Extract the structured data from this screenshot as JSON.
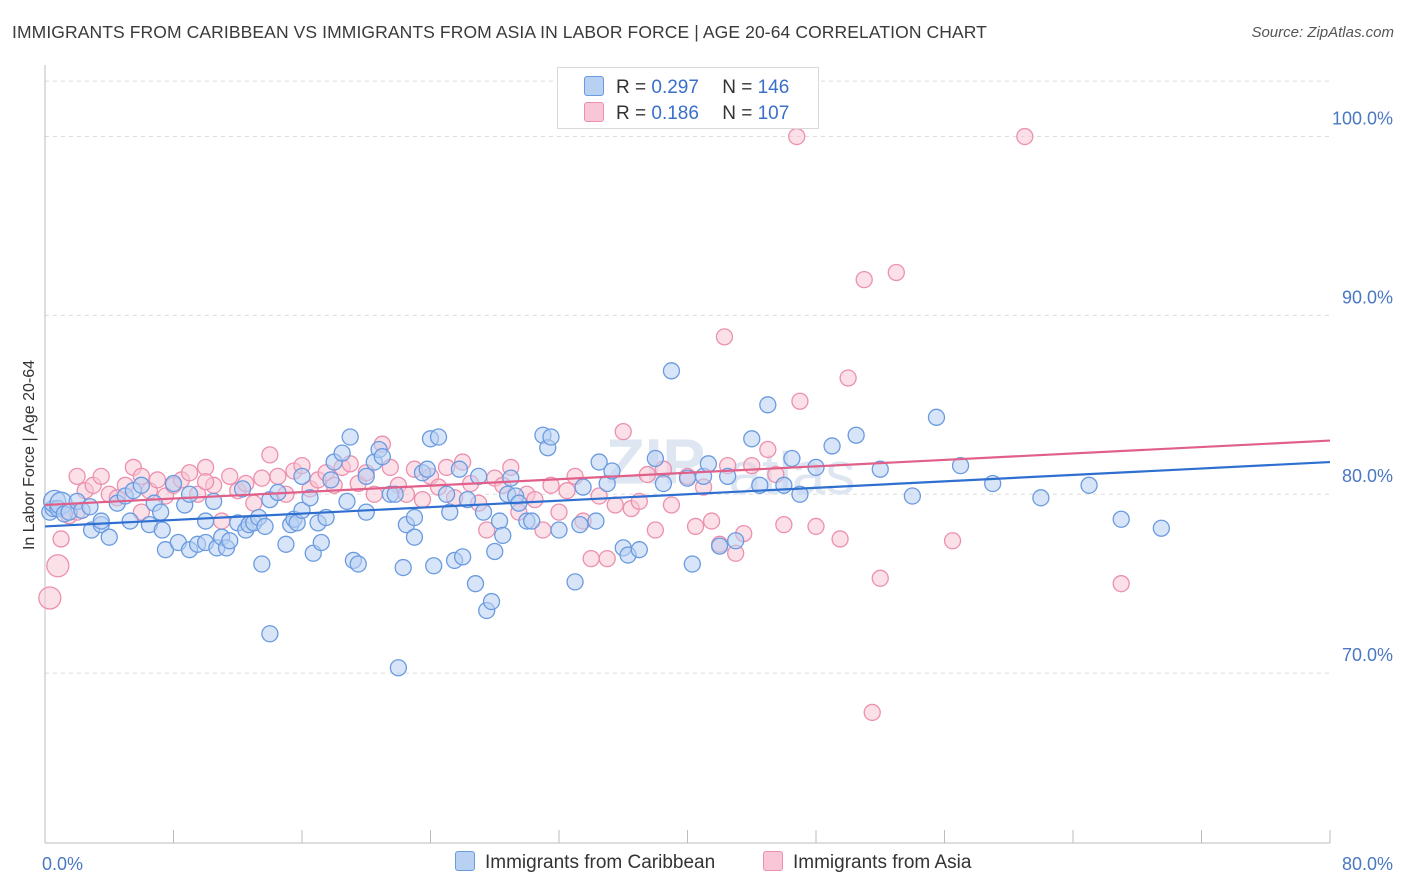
{
  "title": "IMMIGRANTS FROM CARIBBEAN VS IMMIGRANTS FROM ASIA IN LABOR FORCE | AGE 20-64 CORRELATION CHART",
  "source": "Source: ZipAtlas.com",
  "colors": {
    "blue_fill": "#b8d0f2",
    "blue_stroke": "#6a9be0",
    "blue_line": "#2f6fd0",
    "pink_fill": "#f8c6d6",
    "pink_stroke": "#ec90ae",
    "pink_line": "#e0608a",
    "tick_text": "#4a78c2",
    "grid": "#dcdcdc"
  },
  "legend": {
    "rows": [
      {
        "r_label": "R =",
        "r_value": "0.297",
        "n_label": "N =",
        "n_value": "146",
        "series": "blue"
      },
      {
        "r_label": "R =",
        "r_value": "0.186",
        "n_label": "N =",
        "n_value": "107",
        "series": "pink"
      }
    ]
  },
  "chart_data": {
    "type": "scatter",
    "xlabel": "",
    "ylabel": "In Labor Force | Age 20-64",
    "xlim": [
      0,
      80
    ],
    "ylim": [
      60.5,
      104
    ],
    "x_tick_labels": [
      "0.0%",
      "80.0%"
    ],
    "y_ticks": [
      70,
      80,
      90,
      100
    ],
    "y_tick_labels": [
      "70.0%",
      "80.0%",
      "90.0%",
      "100.0%"
    ],
    "grid": "horizontal dashed",
    "legend_position": "top-center",
    "series": [
      {
        "name": "Immigrants from Caribbean",
        "color": "blue",
        "trend": [
          [
            0,
            78.2
          ],
          [
            80,
            81.8
          ]
        ],
        "points": [
          [
            0.3,
            79.0
          ],
          [
            0.5,
            79.2
          ],
          [
            0.6,
            79.6
          ],
          [
            0.8,
            79.2
          ],
          [
            1.0,
            79.5
          ],
          [
            1.2,
            78.9
          ],
          [
            1.5,
            79.0
          ],
          [
            2.0,
            79.6
          ],
          [
            2.3,
            79.1
          ],
          [
            2.8,
            79.3
          ],
          [
            2.9,
            78.0
          ],
          [
            3.5,
            78.3
          ],
          [
            3.5,
            78.5
          ],
          [
            4.0,
            77.6
          ],
          [
            4.5,
            79.5
          ],
          [
            5.0,
            79.9
          ],
          [
            5.5,
            80.2
          ],
          [
            5.3,
            78.5
          ],
          [
            6.0,
            80.5
          ],
          [
            6.5,
            78.3
          ],
          [
            6.8,
            79.5
          ],
          [
            7.2,
            79.0
          ],
          [
            7.3,
            78.0
          ],
          [
            7.5,
            76.9
          ],
          [
            8.0,
            80.6
          ],
          [
            8.3,
            77.3
          ],
          [
            8.7,
            79.4
          ],
          [
            9.0,
            80.0
          ],
          [
            9.0,
            76.9
          ],
          [
            9.5,
            77.2
          ],
          [
            10.0,
            78.5
          ],
          [
            10.0,
            77.3
          ],
          [
            10.5,
            79.6
          ],
          [
            10.7,
            77.0
          ],
          [
            11.0,
            77.6
          ],
          [
            11.3,
            77.0
          ],
          [
            11.5,
            77.4
          ],
          [
            12.0,
            78.4
          ],
          [
            12.3,
            80.3
          ],
          [
            12.5,
            78.0
          ],
          [
            12.7,
            78.3
          ],
          [
            13.0,
            78.4
          ],
          [
            13.3,
            78.7
          ],
          [
            13.5,
            76.1
          ],
          [
            13.7,
            78.2
          ],
          [
            14.0,
            79.7
          ],
          [
            14.0,
            72.2
          ],
          [
            14.5,
            80.1
          ],
          [
            15.0,
            77.2
          ],
          [
            15.3,
            78.3
          ],
          [
            15.5,
            78.6
          ],
          [
            15.7,
            78.4
          ],
          [
            16.0,
            81.0
          ],
          [
            16.0,
            79.1
          ],
          [
            16.5,
            79.8
          ],
          [
            16.7,
            76.7
          ],
          [
            17.0,
            78.4
          ],
          [
            17.2,
            77.3
          ],
          [
            17.5,
            78.7
          ],
          [
            17.8,
            80.8
          ],
          [
            18.0,
            81.8
          ],
          [
            18.5,
            82.3
          ],
          [
            18.8,
            79.6
          ],
          [
            19.0,
            83.2
          ],
          [
            19.2,
            76.3
          ],
          [
            19.5,
            76.1
          ],
          [
            20.0,
            81.0
          ],
          [
            20.0,
            79.0
          ],
          [
            20.5,
            81.8
          ],
          [
            20.8,
            82.5
          ],
          [
            21.0,
            82.1
          ],
          [
            21.5,
            80.0
          ],
          [
            21.8,
            80.0
          ],
          [
            22.0,
            70.3
          ],
          [
            22.3,
            75.9
          ],
          [
            22.5,
            78.3
          ],
          [
            23.0,
            78.7
          ],
          [
            23.0,
            77.6
          ],
          [
            23.5,
            81.2
          ],
          [
            23.8,
            81.4
          ],
          [
            24.0,
            83.1
          ],
          [
            24.2,
            76.0
          ],
          [
            24.5,
            83.2
          ],
          [
            25.0,
            80.0
          ],
          [
            25.2,
            79.0
          ],
          [
            25.5,
            76.3
          ],
          [
            25.8,
            81.4
          ],
          [
            26.0,
            76.5
          ],
          [
            26.3,
            79.7
          ],
          [
            26.8,
            75.0
          ],
          [
            27.0,
            81.0
          ],
          [
            27.3,
            79.0
          ],
          [
            27.5,
            73.5
          ],
          [
            27.8,
            74.0
          ],
          [
            28.0,
            76.8
          ],
          [
            28.3,
            78.5
          ],
          [
            28.5,
            77.7
          ],
          [
            28.8,
            80.0
          ],
          [
            29.0,
            80.9
          ],
          [
            29.3,
            79.9
          ],
          [
            29.5,
            79.5
          ],
          [
            30.0,
            78.5
          ],
          [
            30.3,
            78.5
          ],
          [
            31.0,
            83.3
          ],
          [
            31.3,
            82.6
          ],
          [
            31.5,
            83.2
          ],
          [
            32.0,
            78.0
          ],
          [
            33.0,
            75.1
          ],
          [
            33.3,
            78.3
          ],
          [
            33.5,
            80.4
          ],
          [
            34.3,
            78.5
          ],
          [
            34.5,
            81.8
          ],
          [
            35.0,
            80.6
          ],
          [
            35.3,
            81.3
          ],
          [
            36.0,
            77.0
          ],
          [
            36.3,
            76.6
          ],
          [
            37.0,
            76.9
          ],
          [
            38.0,
            82.0
          ],
          [
            38.5,
            80.6
          ],
          [
            39.0,
            86.9
          ],
          [
            40.0,
            80.9
          ],
          [
            40.3,
            76.1
          ],
          [
            41.0,
            81.0
          ],
          [
            41.3,
            81.7
          ],
          [
            42.0,
            77.1
          ],
          [
            42.5,
            81.0
          ],
          [
            43.0,
            77.4
          ],
          [
            44.0,
            83.1
          ],
          [
            44.5,
            80.5
          ],
          [
            45.0,
            85.0
          ],
          [
            46.0,
            80.5
          ],
          [
            46.5,
            82.0
          ],
          [
            47.0,
            80.0
          ],
          [
            48.0,
            81.5
          ],
          [
            49.0,
            82.7
          ],
          [
            50.5,
            83.3
          ],
          [
            52.0,
            81.4
          ],
          [
            54.0,
            79.9
          ],
          [
            55.5,
            84.3
          ],
          [
            57.0,
            81.6
          ],
          [
            59.0,
            80.6
          ],
          [
            62.0,
            79.8
          ],
          [
            65.0,
            80.5
          ],
          [
            67.0,
            78.6
          ],
          [
            69.5,
            78.1
          ]
        ]
      },
      {
        "name": "Immigrants from Asia",
        "color": "pink",
        "trend": [
          [
            0,
            79.4
          ],
          [
            80,
            83.0
          ]
        ],
        "points": [
          [
            0.3,
            74.2
          ],
          [
            0.8,
            76.0
          ],
          [
            1.0,
            77.5
          ],
          [
            1.5,
            78.8
          ],
          [
            2.0,
            79.0
          ],
          [
            2.5,
            80.2
          ],
          [
            3.0,
            80.5
          ],
          [
            3.5,
            81.0
          ],
          [
            4.0,
            80.0
          ],
          [
            4.5,
            79.8
          ],
          [
            5.0,
            80.5
          ],
          [
            5.5,
            81.5
          ],
          [
            6.0,
            81.0
          ],
          [
            6.5,
            80.2
          ],
          [
            7.0,
            80.8
          ],
          [
            7.5,
            79.9
          ],
          [
            8.0,
            80.5
          ],
          [
            8.5,
            80.8
          ],
          [
            9.0,
            81.2
          ],
          [
            9.5,
            80.0
          ],
          [
            10.0,
            81.5
          ],
          [
            10.5,
            80.5
          ],
          [
            11.0,
            78.5
          ],
          [
            11.5,
            81.0
          ],
          [
            12.0,
            80.2
          ],
          [
            12.5,
            80.6
          ],
          [
            13.0,
            79.5
          ],
          [
            13.5,
            80.9
          ],
          [
            14.0,
            82.2
          ],
          [
            14.5,
            81.0
          ],
          [
            15.0,
            80.0
          ],
          [
            15.5,
            81.3
          ],
          [
            16.0,
            81.6
          ],
          [
            16.5,
            80.3
          ],
          [
            17.0,
            80.8
          ],
          [
            17.5,
            81.2
          ],
          [
            18.0,
            80.5
          ],
          [
            18.5,
            81.5
          ],
          [
            19.0,
            81.7
          ],
          [
            19.5,
            80.6
          ],
          [
            20.0,
            81.2
          ],
          [
            20.5,
            80.0
          ],
          [
            21.0,
            82.8
          ],
          [
            21.5,
            81.5
          ],
          [
            22.0,
            80.5
          ],
          [
            22.5,
            80.0
          ],
          [
            23.0,
            81.4
          ],
          [
            23.5,
            79.7
          ],
          [
            24.0,
            81.0
          ],
          [
            24.5,
            80.4
          ],
          [
            25.0,
            81.5
          ],
          [
            25.5,
            79.8
          ],
          [
            26.0,
            81.8
          ],
          [
            26.5,
            80.6
          ],
          [
            27.0,
            79.5
          ],
          [
            27.5,
            78.0
          ],
          [
            28.0,
            80.9
          ],
          [
            28.5,
            80.5
          ],
          [
            29.0,
            81.5
          ],
          [
            29.5,
            79.0
          ],
          [
            30.0,
            80.0
          ],
          [
            30.5,
            79.7
          ],
          [
            31.0,
            78.0
          ],
          [
            31.5,
            80.5
          ],
          [
            32.0,
            79.0
          ],
          [
            32.5,
            80.2
          ],
          [
            33.0,
            81.0
          ],
          [
            33.5,
            78.5
          ],
          [
            34.0,
            76.4
          ],
          [
            34.5,
            79.9
          ],
          [
            35.0,
            76.4
          ],
          [
            35.5,
            79.4
          ],
          [
            36.0,
            83.5
          ],
          [
            36.5,
            79.2
          ],
          [
            37.0,
            79.6
          ],
          [
            37.5,
            81.1
          ],
          [
            38.0,
            78.0
          ],
          [
            38.5,
            81.4
          ],
          [
            39.0,
            79.4
          ],
          [
            40.0,
            81.0
          ],
          [
            40.5,
            78.2
          ],
          [
            41.0,
            80.4
          ],
          [
            41.5,
            78.5
          ],
          [
            42.0,
            77.2
          ],
          [
            42.3,
            88.8
          ],
          [
            42.5,
            81.6
          ],
          [
            43.0,
            76.7
          ],
          [
            43.5,
            77.8
          ],
          [
            44.0,
            81.6
          ],
          [
            45.0,
            82.5
          ],
          [
            45.5,
            81.1
          ],
          [
            46.0,
            78.3
          ],
          [
            47.0,
            85.2
          ],
          [
            48.0,
            78.2
          ],
          [
            49.5,
            77.5
          ],
          [
            50.0,
            86.5
          ],
          [
            51.0,
            92.0
          ],
          [
            52.0,
            75.3
          ],
          [
            53.0,
            92.4
          ],
          [
            51.5,
            67.8
          ],
          [
            56.5,
            77.4
          ],
          [
            46.8,
            100.0
          ],
          [
            61.0,
            100.0
          ],
          [
            67.0,
            75.0
          ],
          [
            2.0,
            81.0
          ],
          [
            6.0,
            79.0
          ],
          [
            10.0,
            80.7
          ]
        ]
      }
    ]
  },
  "bottom_legend": [
    {
      "label": "Immigrants from Caribbean",
      "series": "blue"
    },
    {
      "label": "Immigrants from Asia",
      "series": "pink"
    }
  ]
}
